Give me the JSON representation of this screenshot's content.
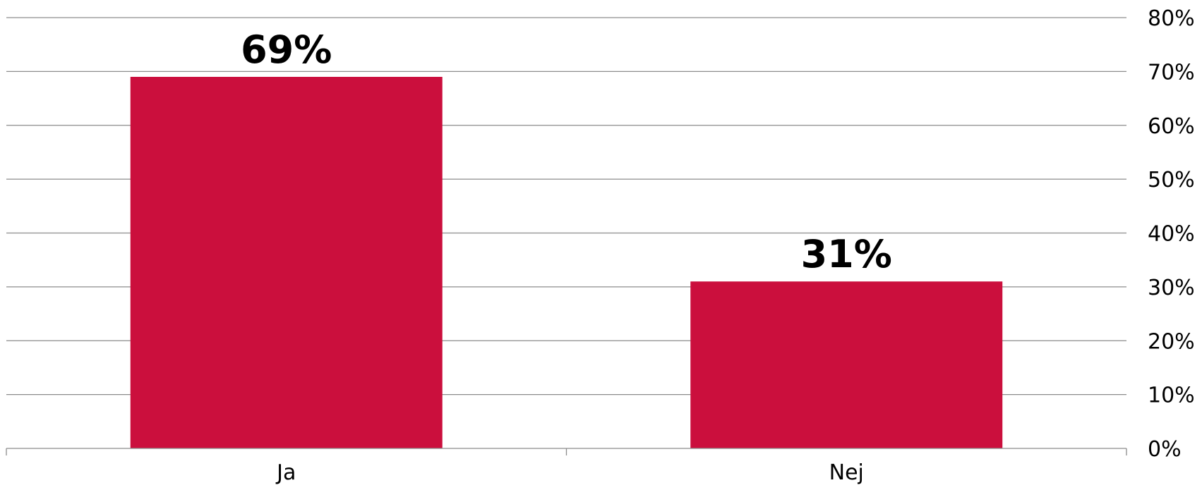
{
  "chart_data": {
    "type": "bar",
    "categories": [
      "Ja",
      "Nej"
    ],
    "values": [
      69,
      31
    ],
    "data_labels": [
      "69%",
      "31%"
    ],
    "ylim": [
      0,
      80
    ],
    "yticks": [
      "0%",
      "10%",
      "20%",
      "30%",
      "40%",
      "50%",
      "60%",
      "70%",
      "80%"
    ],
    "y_axis_position": "right",
    "grid": true,
    "legend": "none",
    "title": "",
    "xlabel": "",
    "ylabel": "",
    "bar_color": "#cb0f3d",
    "grid_color": "#8c8c8c"
  }
}
